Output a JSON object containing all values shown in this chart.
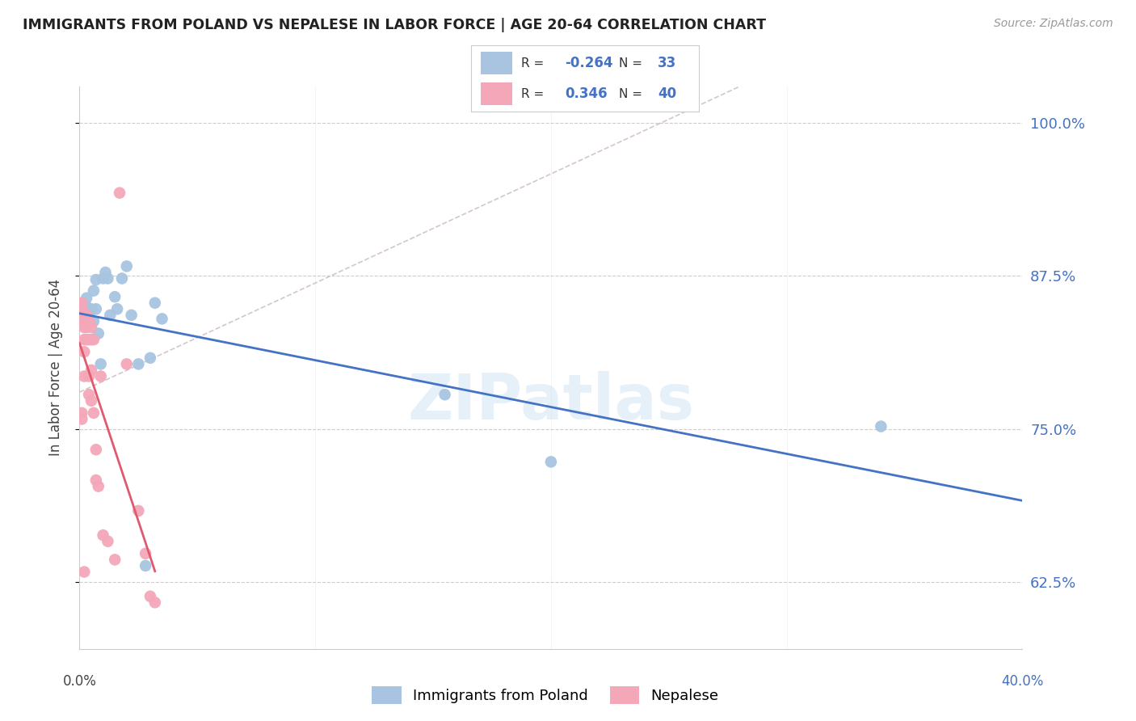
{
  "title": "IMMIGRANTS FROM POLAND VS NEPALESE IN LABOR FORCE | AGE 20-64 CORRELATION CHART",
  "source": "Source: ZipAtlas.com",
  "ylabel": "In Labor Force | Age 20-64",
  "yticks": [
    0.625,
    0.75,
    0.875,
    1.0
  ],
  "ytick_labels": [
    "62.5%",
    "75.0%",
    "87.5%",
    "100.0%"
  ],
  "legend_r_blue": "-0.264",
  "legend_n_blue": "33",
  "legend_r_pink": "0.346",
  "legend_n_pink": "40",
  "blue_scatter_x": [
    0.001,
    0.002,
    0.002,
    0.003,
    0.003,
    0.003,
    0.004,
    0.004,
    0.005,
    0.005,
    0.006,
    0.006,
    0.007,
    0.007,
    0.008,
    0.009,
    0.01,
    0.011,
    0.012,
    0.013,
    0.015,
    0.016,
    0.018,
    0.02,
    0.022,
    0.025,
    0.028,
    0.03,
    0.032,
    0.035,
    0.155,
    0.2,
    0.34
  ],
  "blue_scatter_y": [
    0.84,
    0.838,
    0.852,
    0.843,
    0.85,
    0.857,
    0.843,
    0.848,
    0.823,
    0.848,
    0.838,
    0.863,
    0.848,
    0.872,
    0.828,
    0.803,
    0.873,
    0.878,
    0.873,
    0.843,
    0.858,
    0.848,
    0.873,
    0.883,
    0.843,
    0.803,
    0.638,
    0.808,
    0.853,
    0.84,
    0.778,
    0.723,
    0.752
  ],
  "pink_scatter_x": [
    0.001,
    0.001,
    0.001,
    0.001,
    0.001,
    0.001,
    0.001,
    0.001,
    0.002,
    0.002,
    0.002,
    0.002,
    0.002,
    0.002,
    0.003,
    0.003,
    0.003,
    0.003,
    0.004,
    0.004,
    0.004,
    0.004,
    0.005,
    0.005,
    0.005,
    0.006,
    0.006,
    0.007,
    0.007,
    0.008,
    0.009,
    0.01,
    0.012,
    0.015,
    0.017,
    0.02,
    0.025,
    0.028,
    0.03,
    0.032
  ],
  "pink_scatter_y": [
    0.838,
    0.843,
    0.843,
    0.848,
    0.848,
    0.853,
    0.763,
    0.758,
    0.838,
    0.833,
    0.823,
    0.813,
    0.793,
    0.633,
    0.843,
    0.838,
    0.833,
    0.823,
    0.838,
    0.823,
    0.793,
    0.778,
    0.833,
    0.798,
    0.773,
    0.823,
    0.763,
    0.733,
    0.708,
    0.703,
    0.793,
    0.663,
    0.658,
    0.643,
    0.943,
    0.803,
    0.683,
    0.648,
    0.613,
    0.608
  ],
  "background_color": "#ffffff",
  "blue_color": "#a8c4e0",
  "blue_line_color": "#4472c4",
  "pink_color": "#f4a7b9",
  "pink_line_color": "#e05a6e",
  "dashed_line_color": "#c8b8c0",
  "watermark": "ZIPatlas",
  "xlim": [
    0.0,
    0.4
  ],
  "ylim": [
    0.57,
    1.03
  ],
  "xtick_positions": [
    0.0,
    0.1,
    0.2,
    0.3,
    0.4
  ]
}
